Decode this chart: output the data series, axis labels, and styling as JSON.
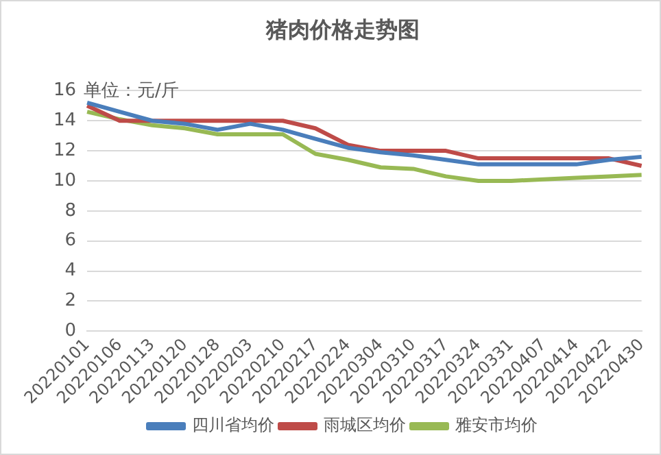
{
  "chart_data": {
    "type": "line",
    "title": "猪肉价格走势图",
    "annotations": [
      "单位：元/斤"
    ],
    "categories": [
      "20220101",
      "20220106",
      "20220113",
      "20220120",
      "20220128",
      "20220203",
      "20220210",
      "20220217",
      "20220224",
      "20220304",
      "20220310",
      "20220317",
      "20220324",
      "20220331",
      "20220407",
      "20220414",
      "20220422",
      "20220430"
    ],
    "series": [
      {
        "name": "四川省均价",
        "color": "#4a7ebb",
        "values": [
          15.2,
          14.6,
          14.0,
          13.8,
          13.4,
          13.8,
          13.4,
          12.8,
          12.2,
          11.9,
          11.7,
          11.4,
          11.1,
          11.1,
          11.1,
          11.1,
          11.4,
          11.6
        ]
      },
      {
        "name": "雨城区均价",
        "color": "#be4b48",
        "values": [
          15.0,
          14.0,
          14.0,
          14.0,
          14.0,
          14.0,
          14.0,
          13.5,
          12.4,
          12.0,
          12.0,
          12.0,
          11.5,
          11.5,
          11.5,
          11.5,
          11.5,
          11.0
        ]
      },
      {
        "name": "雅安市均价",
        "color": "#98b954",
        "values": [
          14.6,
          14.1,
          13.7,
          13.5,
          13.1,
          13.1,
          13.1,
          11.8,
          11.4,
          10.9,
          10.8,
          10.3,
          10.0,
          10.0,
          10.1,
          10.2,
          10.3,
          10.4
        ]
      }
    ],
    "ylim": [
      0,
      16
    ],
    "yticks": [
      0,
      2,
      4,
      6,
      8,
      10,
      12,
      14,
      16
    ],
    "grid": "y",
    "legend": "bottom",
    "marker": "none",
    "line_style": "solid"
  }
}
